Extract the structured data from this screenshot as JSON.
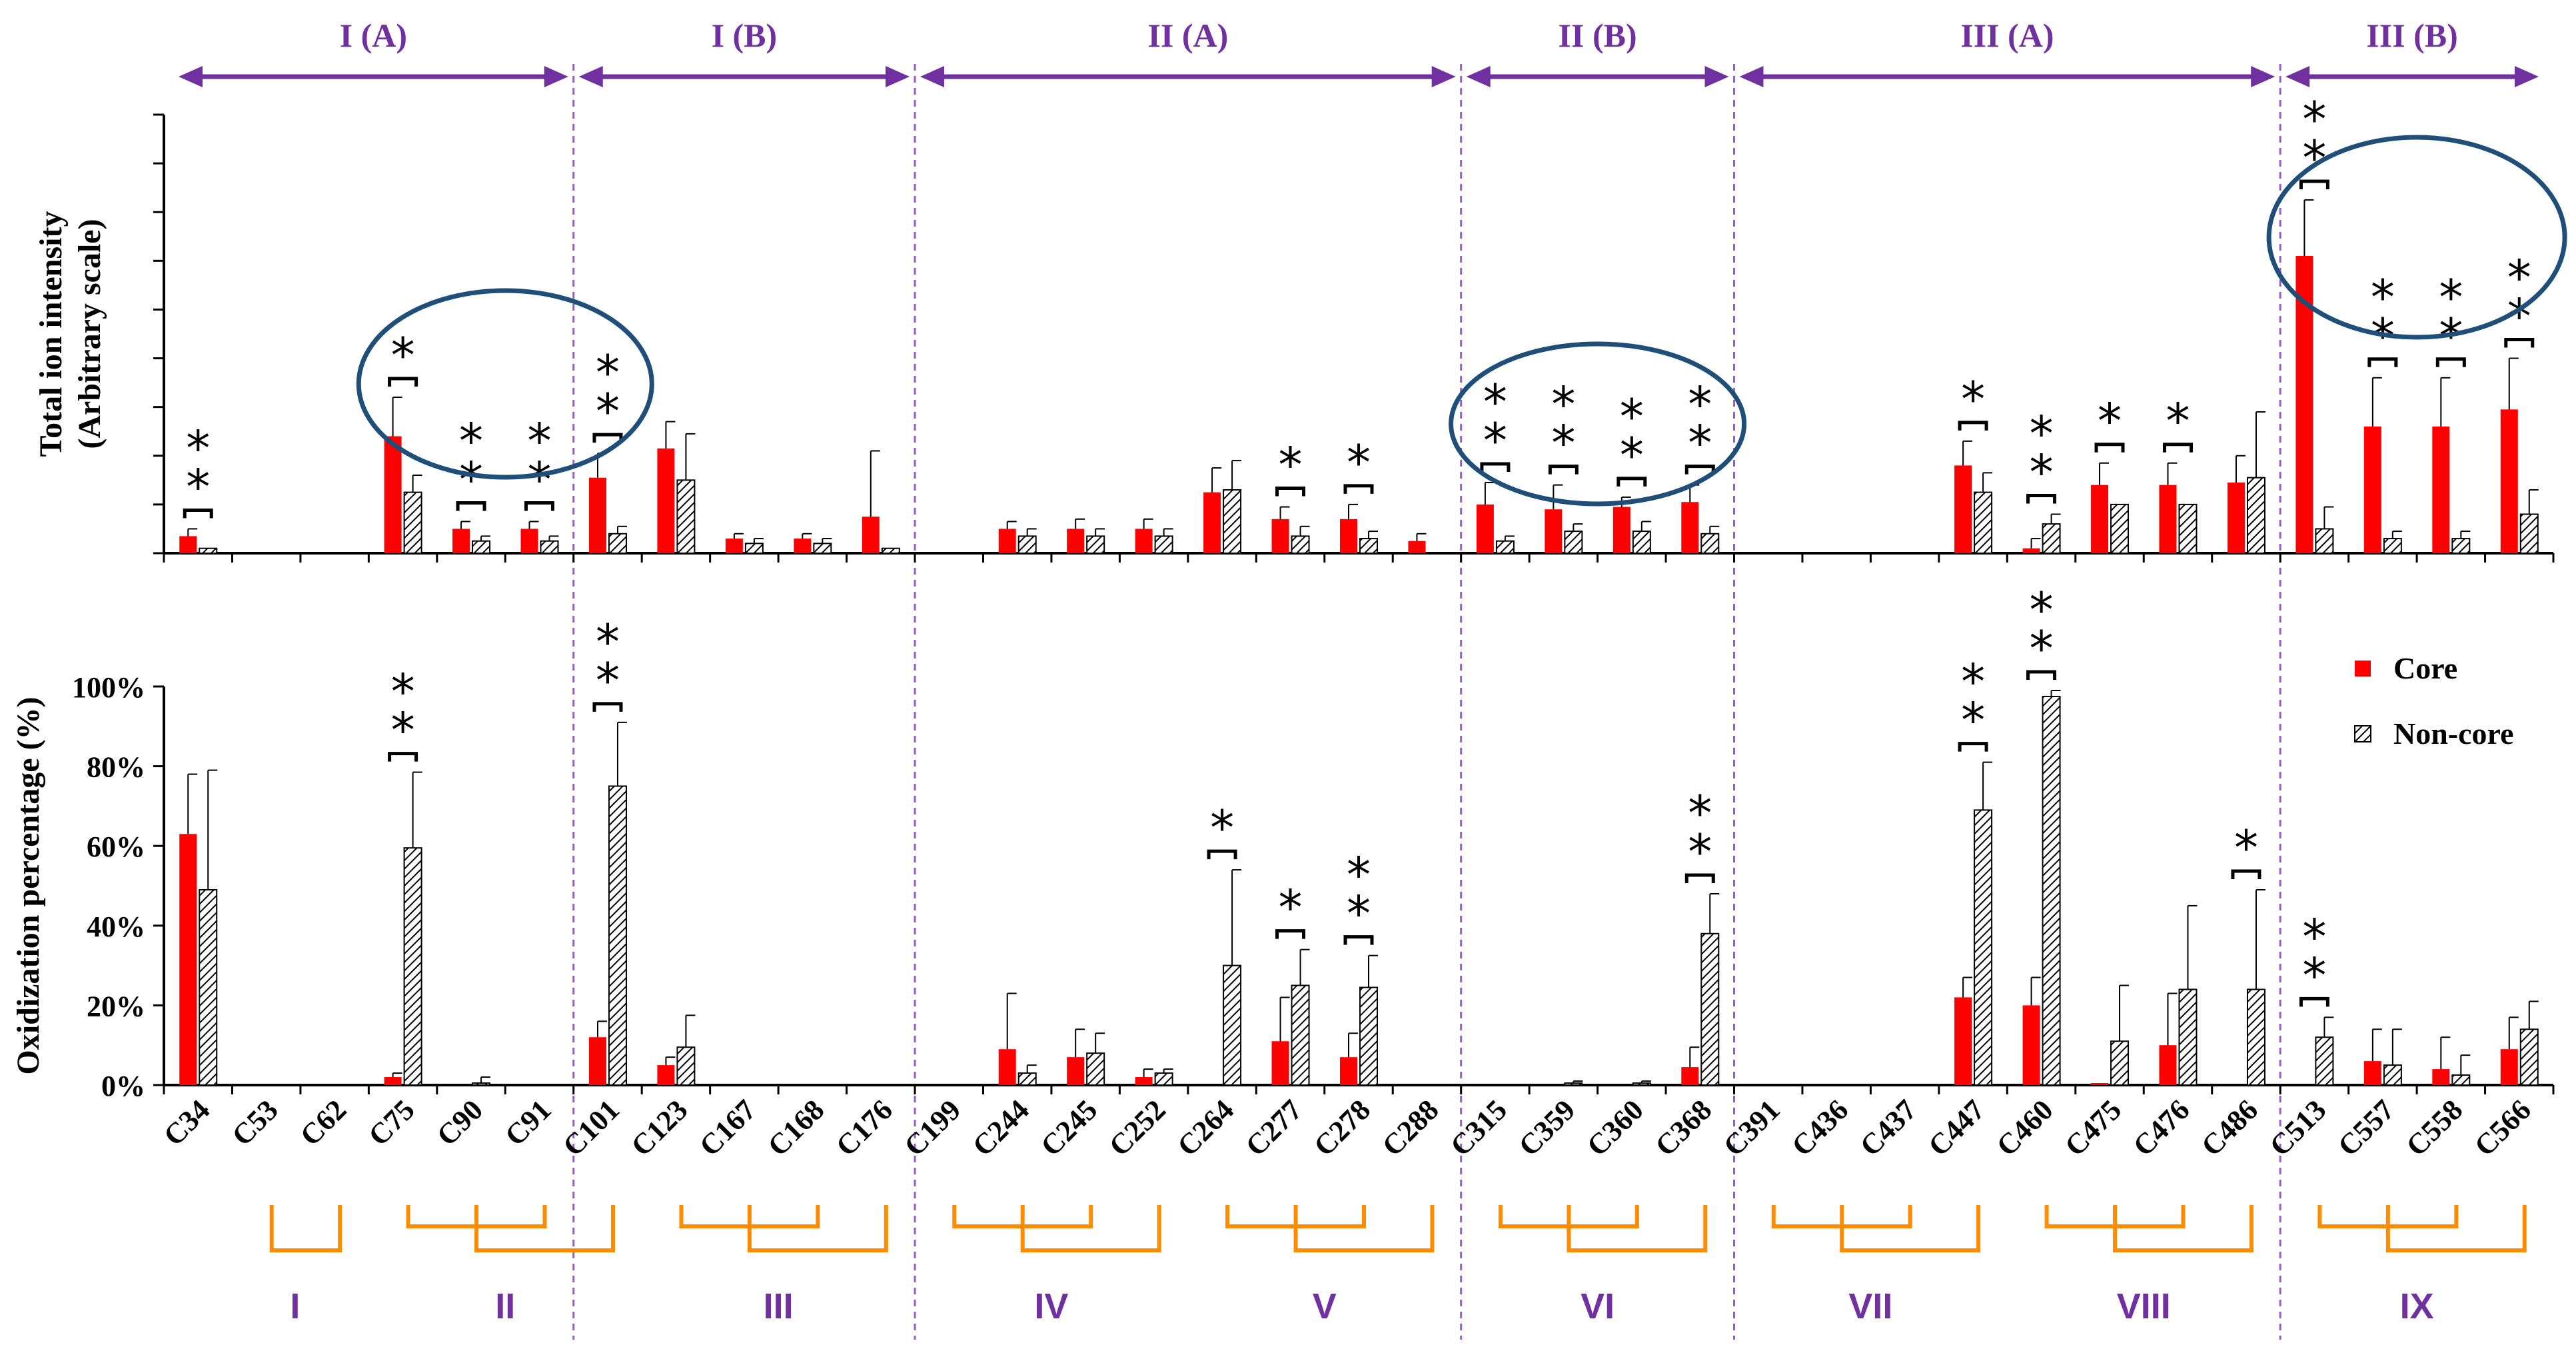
{
  "chart_data": {
    "type": "bar",
    "categories": [
      "C34",
      "C53",
      "C62",
      "C75",
      "C90",
      "C91",
      "C101",
      "C123",
      "C167",
      "C168",
      "C176",
      "C199",
      "C244",
      "C245",
      "C252",
      "C264",
      "C277",
      "C278",
      "C288",
      "C315",
      "C359",
      "C360",
      "C368",
      "C391",
      "C436",
      "C437",
      "C447",
      "C460",
      "C475",
      "C476",
      "C486",
      "C513",
      "C557",
      "C558",
      "C566"
    ],
    "domains": [
      "I (A)",
      "I (B)",
      "II (A)",
      "II (B)",
      "III (A)",
      "III (B)"
    ],
    "groups": [
      "I",
      "II",
      "III",
      "IV",
      "V",
      "VI",
      "VII",
      "VIII",
      "IX"
    ],
    "legend": [
      "Core",
      "Non-core"
    ],
    "colors": {
      "core": "#ff0000",
      "noncore_hatch": "#000000",
      "domain": "#7030a0",
      "circle": "#1f4e79",
      "bracket": "#ff8c00"
    },
    "panels": [
      {
        "title": "",
        "ylabel_line1": "Total ion intensity",
        "ylabel_line2": "(Arbitrary scale)",
        "ylim": [
          0,
          9
        ],
        "yticks": [],
        "series": [
          {
            "name": "Core",
            "values": [
              0.35,
              0,
              0,
              2.4,
              0.5,
              0.5,
              1.55,
              2.15,
              0.3,
              0.3,
              0.75,
              0,
              0.5,
              0.5,
              0.5,
              1.25,
              0.7,
              0.7,
              0.25,
              1.0,
              0.9,
              0.95,
              1.05,
              0,
              0,
              0,
              1.8,
              0.1,
              1.4,
              1.4,
              1.45,
              6.1,
              2.6,
              2.6,
              2.95
            ],
            "errors": [
              0.15,
              0,
              0,
              0.8,
              0.15,
              0.15,
              0.5,
              0.55,
              0.1,
              0.1,
              1.35,
              0,
              0.15,
              0.2,
              0.2,
              0.5,
              0.25,
              0.3,
              0.15,
              0.45,
              0.5,
              0.2,
              0.35,
              0,
              0,
              0,
              0.5,
              0.2,
              0.45,
              0.45,
              0.55,
              1.15,
              1.0,
              1.0,
              1.05
            ]
          },
          {
            "name": "Non-core",
            "values": [
              0.1,
              0,
              0,
              1.25,
              0.25,
              0.25,
              0.4,
              1.5,
              0.2,
              0.2,
              0.1,
              0,
              0.35,
              0.35,
              0.35,
              1.3,
              0.35,
              0.3,
              0,
              0.25,
              0.45,
              0.45,
              0.4,
              0,
              0,
              0,
              1.25,
              0.6,
              1.0,
              1.0,
              1.55,
              0.5,
              0.3,
              0.3,
              0.8
            ],
            "errors": [
              0,
              0,
              0,
              0.35,
              0.1,
              0.1,
              0.15,
              0.95,
              0.1,
              0.1,
              0,
              0,
              0.15,
              0.15,
              0.15,
              0.6,
              0.2,
              0.15,
              0,
              0.1,
              0.15,
              0.2,
              0.15,
              0,
              0,
              0,
              0.4,
              0.2,
              0,
              0,
              1.35,
              0.45,
              0.15,
              0.15,
              0.5
            ]
          }
        ],
        "significance": [
          {
            "category": "C34",
            "label": "**"
          },
          {
            "category": "C75",
            "label": "*"
          },
          {
            "category": "C90",
            "label": "**"
          },
          {
            "category": "C91",
            "label": "**"
          },
          {
            "category": "C101",
            "label": "**"
          },
          {
            "category": "C277",
            "label": "*"
          },
          {
            "category": "C278",
            "label": "*"
          },
          {
            "category": "C315",
            "label": "**"
          },
          {
            "category": "C359",
            "label": "**"
          },
          {
            "category": "C360",
            "label": "**"
          },
          {
            "category": "C368",
            "label": "**"
          },
          {
            "category": "C447",
            "label": "*"
          },
          {
            "category": "C460",
            "label": "**"
          },
          {
            "category": "C475",
            "label": "*"
          },
          {
            "category": "C476",
            "label": "*"
          },
          {
            "category": "C513",
            "label": "**"
          },
          {
            "category": "C557",
            "label": "**"
          },
          {
            "category": "C558",
            "label": "**"
          },
          {
            "category": "C566",
            "label": "**"
          }
        ]
      },
      {
        "title": "",
        "ylabel": "Oxidization percentage (%)",
        "ylim": [
          0,
          100
        ],
        "yticks": [
          "0%",
          "20%",
          "40%",
          "60%",
          "80%",
          "100%"
        ],
        "series": [
          {
            "name": "Core",
            "values": [
              63,
              0,
              0,
              2,
              0,
              0,
              12,
              5,
              0,
              0,
              0,
              0,
              9,
              7,
              2,
              0,
              11,
              7,
              0,
              0,
              0,
              0,
              4.5,
              0,
              0,
              0,
              22,
              20,
              0.5,
              10,
              0,
              0,
              6,
              4,
              9
            ],
            "errors": [
              15,
              0,
              0,
              1,
              0,
              0,
              4,
              2,
              0,
              0,
              0,
              0,
              14,
              7,
              2,
              0,
              11,
              6,
              0,
              0,
              0,
              0,
              5,
              0,
              0,
              0,
              5,
              7,
              0,
              13,
              0,
              0,
              8,
              8,
              8
            ]
          },
          {
            "name": "Non-core",
            "values": [
              49,
              0,
              0,
              59.5,
              0.5,
              0,
              75,
              9.5,
              0,
              0,
              0,
              0,
              3,
              8,
              3,
              30,
              25,
              24.5,
              0,
              0,
              0.5,
              0.5,
              38,
              0,
              0,
              0,
              69,
              97.5,
              11,
              24,
              24,
              12,
              5,
              2.5,
              14
            ],
            "errors": [
              30,
              0,
              0,
              19,
              1.5,
              0,
              16,
              8,
              0,
              0,
              0,
              0,
              2,
              5,
              1,
              24,
              9,
              8,
              0,
              0,
              0.5,
              0.5,
              10,
              0,
              0,
              0,
              12,
              1.5,
              14,
              21,
              25,
              5,
              9,
              5,
              7
            ]
          }
        ],
        "significance": [
          {
            "category": "C75",
            "label": "**"
          },
          {
            "category": "C101",
            "label": "**"
          },
          {
            "category": "C264",
            "label": "*"
          },
          {
            "category": "C277",
            "label": "*"
          },
          {
            "category": "C278",
            "label": "**"
          },
          {
            "category": "C368",
            "label": "**"
          },
          {
            "category": "C447",
            "label": "**"
          },
          {
            "category": "C460",
            "label": "**"
          },
          {
            "category": "C486",
            "label": "*"
          },
          {
            "category": "C513",
            "label": "**"
          }
        ]
      }
    ]
  }
}
